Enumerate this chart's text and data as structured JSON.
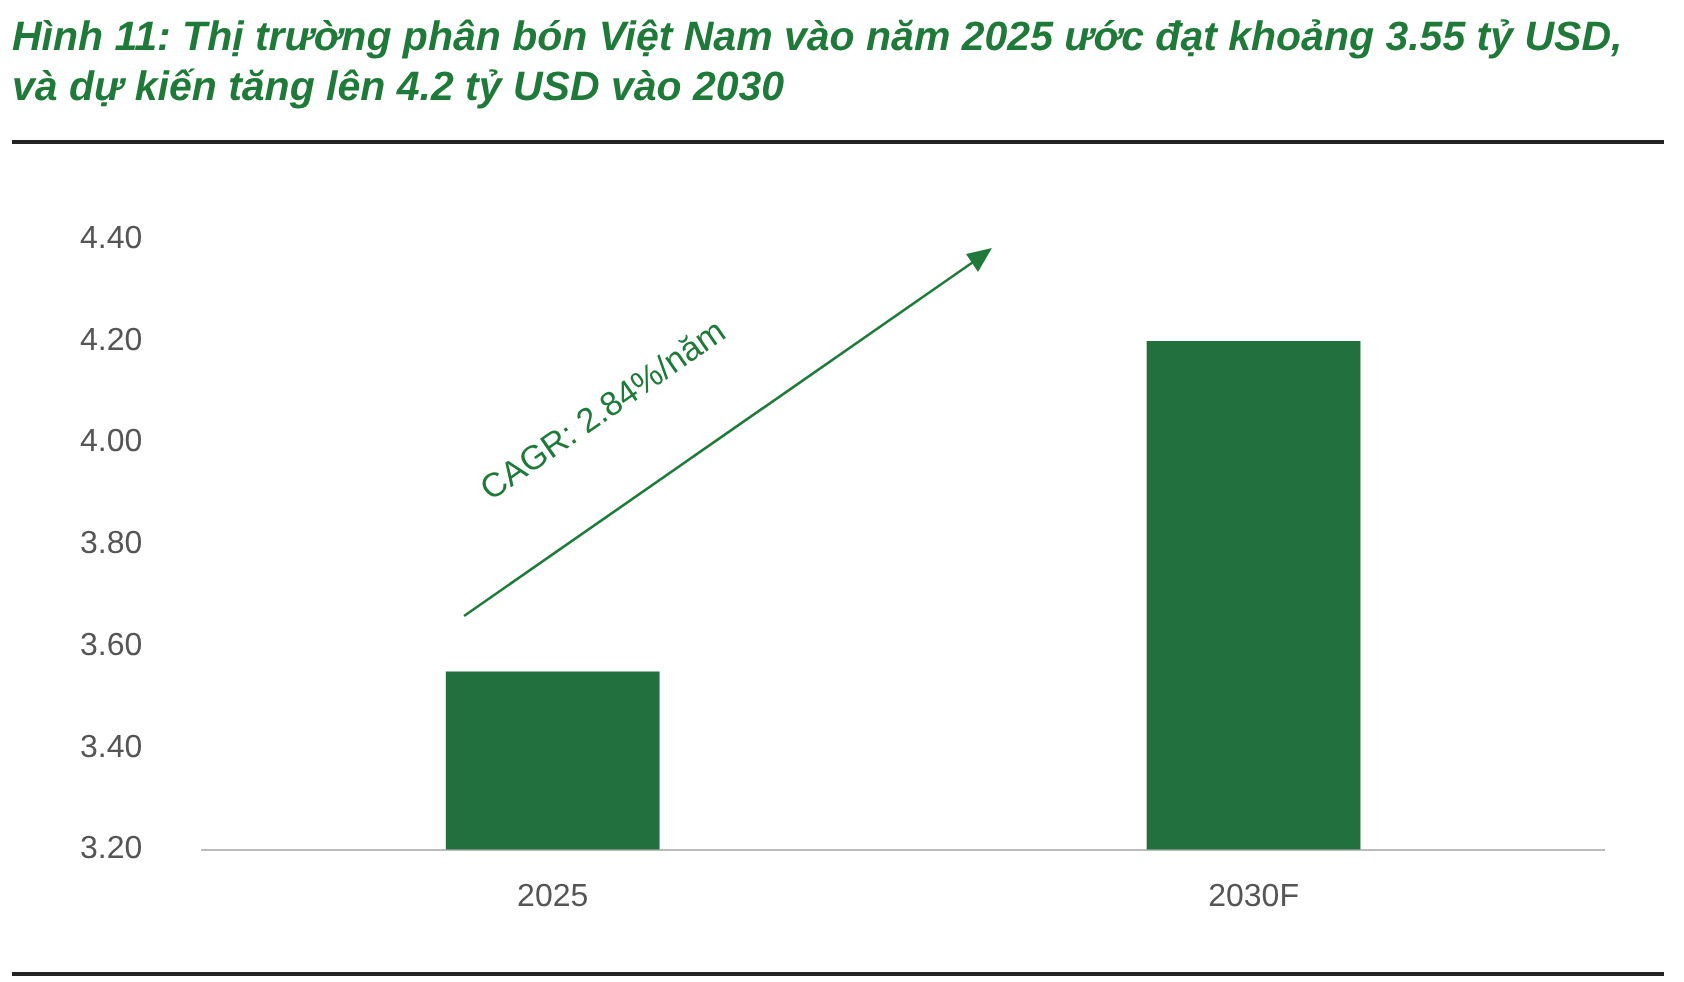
{
  "chart_data": {
    "type": "bar",
    "title": "Hình 11: Thị trường phân bón Việt Nam vào năm 2025 ước đạt khoảng 3.55 tỷ USD, và dự kiến tăng lên 4.2 tỷ USD vào 2030",
    "categories": [
      "2025",
      "2030F"
    ],
    "series": [
      {
        "color": "#23703f",
        "values": [
          3.55,
          4.2
        ]
      }
    ],
    "ylim": [
      3.2,
      4.4
    ],
    "yticks": [
      {
        "value": 3.2,
        "label": "3.20"
      },
      {
        "value": 3.4,
        "label": "3.40"
      },
      {
        "value": 3.6,
        "label": "3.60"
      },
      {
        "value": 3.8,
        "label": "3.80"
      },
      {
        "value": 4.0,
        "label": "4.00"
      },
      {
        "value": 4.2,
        "label": "4.20"
      },
      {
        "value": 4.4,
        "label": "4.40"
      }
    ],
    "grid": false,
    "legend": false,
    "annotations": [
      "CAGR: 2.84%/năm"
    ]
  }
}
